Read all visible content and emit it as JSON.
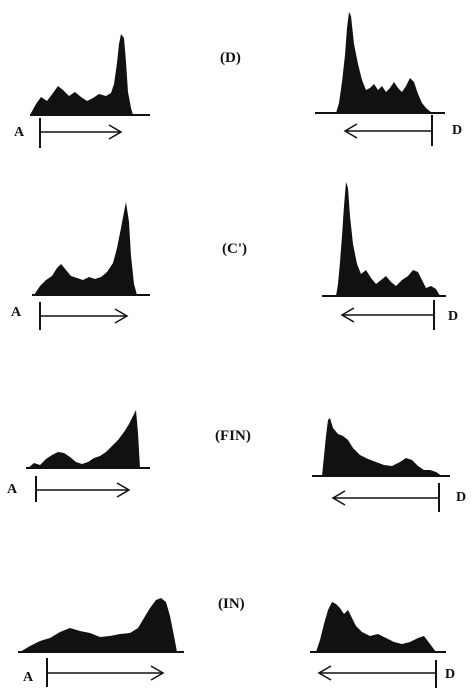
{
  "colors": {
    "ink": "#111111",
    "paper": "#ffffff"
  },
  "panels": [
    {
      "label": "(D)",
      "left": {
        "end_label": "A",
        "arrow_direction": "right"
      },
      "right": {
        "end_label": "D",
        "arrow_direction": "left"
      }
    },
    {
      "label": "(C')",
      "left": {
        "end_label": "A",
        "arrow_direction": "right"
      },
      "right": {
        "end_label": "D",
        "arrow_direction": "left"
      }
    },
    {
      "label": "(FIN)",
      "left": {
        "end_label": "A",
        "arrow_direction": "right"
      },
      "right": {
        "end_label": "D",
        "arrow_direction": "left"
      }
    },
    {
      "label": "(IN)",
      "left": {
        "end_label": "A",
        "arrow_direction": "right"
      },
      "right": {
        "end_label": "D",
        "arrow_direction": "left"
      }
    }
  ]
}
